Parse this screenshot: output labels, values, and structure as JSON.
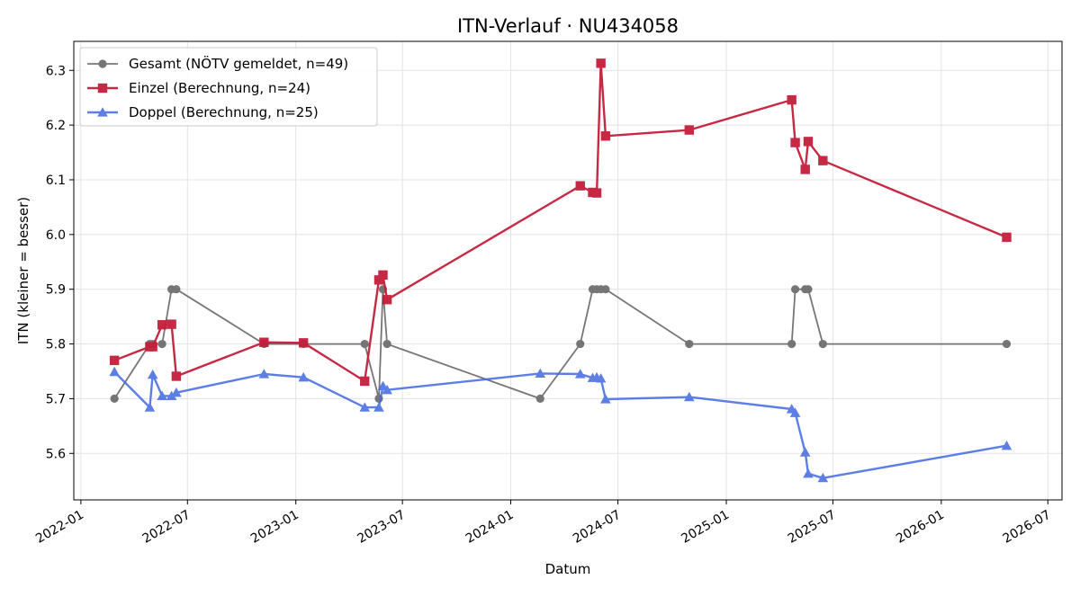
{
  "chart_data": {
    "type": "line",
    "title": "ITN-Verlauf · NU434058",
    "xlabel": "Datum",
    "ylabel": "ITN  (kleiner = besser)",
    "grid": true,
    "legend_position": "top-left",
    "xlim": [
      "2021-12-20",
      "2026-07-25"
    ],
    "ylim": [
      5.515,
      6.353
    ],
    "x_ticks": [
      "2022-01",
      "2022-07",
      "2023-01",
      "2023-07",
      "2024-01",
      "2024-07",
      "2025-01",
      "2025-07",
      "2026-01",
      "2026-07"
    ],
    "x_tick_dates": [
      "2022-01-01",
      "2022-07-01",
      "2023-01-01",
      "2023-07-01",
      "2024-01-01",
      "2024-07-01",
      "2025-01-01",
      "2025-07-01",
      "2026-01-01",
      "2026-07-01"
    ],
    "y_ticks": [
      "5.6",
      "5.7",
      "5.8",
      "5.9",
      "6.0",
      "6.1",
      "6.2",
      "6.3"
    ],
    "series": [
      {
        "name": "Gesamt (NÖTV gemeldet, n=49)",
        "color": "#555555",
        "marker": "circle",
        "line_width": 1.8,
        "opacity": 0.8,
        "x": [
          "2022-02-27",
          "2022-04-28",
          "2022-05-03",
          "2022-05-19",
          "2022-06-04",
          "2022-06-12",
          "2022-11-08",
          "2023-01-14",
          "2023-04-28",
          "2023-05-22",
          "2023-05-29",
          "2023-06-05",
          "2024-02-20",
          "2024-04-28",
          "2024-05-19",
          "2024-05-26",
          "2024-06-02",
          "2024-06-10",
          "2024-10-30",
          "2025-04-22",
          "2025-04-28",
          "2025-05-15",
          "2025-05-20",
          "2025-06-14",
          "2026-04-22"
        ],
        "y": [
          5.7,
          5.8,
          5.8,
          5.8,
          5.9,
          5.9,
          5.8,
          5.8,
          5.8,
          5.7,
          5.9,
          5.8,
          5.7,
          5.8,
          5.9,
          5.9,
          5.9,
          5.9,
          5.8,
          5.8,
          5.9,
          5.9,
          5.9,
          5.8,
          5.8
        ]
      },
      {
        "name": "Einzel (Berechnung, n=24)",
        "color": "#c41e3a",
        "marker": "square",
        "line_width": 2.4,
        "opacity": 0.95,
        "x": [
          "2022-02-27",
          "2022-04-28",
          "2022-05-03",
          "2022-05-19",
          "2022-06-04",
          "2022-06-12",
          "2022-11-08",
          "2023-01-14",
          "2023-04-28",
          "2023-05-22",
          "2023-05-29",
          "2023-06-05",
          "2024-04-28",
          "2024-05-19",
          "2024-05-26",
          "2024-06-02",
          "2024-06-10",
          "2024-10-30",
          "2025-04-22",
          "2025-04-28",
          "2025-05-15",
          "2025-05-20",
          "2025-06-14",
          "2026-04-22"
        ],
        "y": [
          5.77,
          5.795,
          5.795,
          5.835,
          5.836,
          5.741,
          5.803,
          5.802,
          5.732,
          5.917,
          5.926,
          5.881,
          6.089,
          6.077,
          6.076,
          6.313,
          6.18,
          6.191,
          6.246,
          6.168,
          6.119,
          6.17,
          6.135,
          5.995
        ]
      },
      {
        "name": "Doppel (Berechnung, n=25)",
        "color": "#4169e1",
        "marker": "triangle",
        "line_width": 2.4,
        "opacity": 0.85,
        "x": [
          "2022-02-27",
          "2022-04-28",
          "2022-05-03",
          "2022-05-19",
          "2022-06-04",
          "2022-06-12",
          "2022-11-08",
          "2023-01-14",
          "2023-04-28",
          "2023-05-22",
          "2023-05-29",
          "2023-06-05",
          "2024-02-20",
          "2024-04-28",
          "2024-05-19",
          "2024-05-26",
          "2024-06-02",
          "2024-06-10",
          "2024-10-30",
          "2025-04-22",
          "2025-04-28",
          "2025-05-15",
          "2025-05-20",
          "2025-06-14",
          "2026-04-22"
        ],
        "y": [
          5.749,
          5.684,
          5.744,
          5.705,
          5.705,
          5.711,
          5.745,
          5.739,
          5.684,
          5.684,
          5.723,
          5.716,
          5.746,
          5.745,
          5.738,
          5.739,
          5.737,
          5.699,
          5.703,
          5.681,
          5.674,
          5.602,
          5.563,
          5.555,
          5.614
        ]
      }
    ]
  }
}
